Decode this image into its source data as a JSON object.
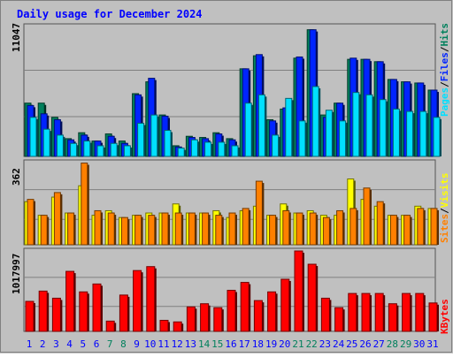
{
  "chart_data": [
    {
      "type": "bar",
      "title": "Daily usage for December 2024",
      "categories": [
        "1",
        "2",
        "3",
        "4",
        "5",
        "6",
        "7",
        "8",
        "9",
        "10",
        "11",
        "12",
        "13",
        "14",
        "15",
        "16",
        "17",
        "18",
        "19",
        "20",
        "21",
        "22",
        "23",
        "24",
        "25",
        "26",
        "27",
        "28",
        "29",
        "30",
        "31"
      ],
      "weekend_days": [
        "7",
        "8",
        "14",
        "15",
        "21",
        "22",
        "28",
        "29"
      ],
      "ylabels": {
        "hits": "Hits",
        "files": "Files",
        "pages": "Pages",
        "separator": "/"
      },
      "y_max_label": "11047",
      "ylim": [
        0,
        11047
      ],
      "series": [
        {
          "name": "Hits",
          "color": "#00805c",
          "values": [
            4500,
            4500,
            3300,
            1500,
            2000,
            1300,
            1900,
            1300,
            5300,
            6300,
            3500,
            900,
            1700,
            1600,
            2000,
            1500,
            7400,
            8500,
            3100,
            4000,
            8300,
            10700,
            3500,
            4500,
            8200,
            8200,
            8000,
            6500,
            6300,
            6200,
            5600
          ]
        },
        {
          "name": "Files",
          "color": "#0024ff",
          "values": [
            4300,
            3600,
            3100,
            1400,
            1800,
            1300,
            1700,
            1100,
            5200,
            6600,
            3400,
            800,
            1600,
            1500,
            1900,
            1400,
            7400,
            8600,
            3000,
            4100,
            8400,
            10700,
            3300,
            4500,
            8300,
            8200,
            8000,
            6500,
            6300,
            6200,
            5600
          ]
        },
        {
          "name": "Pages",
          "color": "#00e0ff",
          "values": [
            3300,
            2300,
            1800,
            1100,
            1300,
            900,
            1100,
            900,
            2800,
            3500,
            2200,
            700,
            1400,
            1200,
            1200,
            900,
            4500,
            5200,
            1800,
            4900,
            3000,
            5900,
            3900,
            3000,
            5400,
            5200,
            4800,
            4000,
            3800,
            3800,
            3300
          ]
        }
      ]
    },
    {
      "type": "bar",
      "ylabels": {
        "visits": "Visits",
        "sites": "Sites",
        "separator": "/"
      },
      "y_max_label": "362",
      "ylim": [
        0,
        362
      ],
      "series": [
        {
          "name": "Visits",
          "color": "#ffff00",
          "values": [
            190,
            130,
            210,
            140,
            260,
            130,
            150,
            120,
            130,
            140,
            140,
            180,
            140,
            140,
            150,
            120,
            150,
            170,
            130,
            180,
            140,
            150,
            130,
            130,
            290,
            200,
            170,
            130,
            130,
            170,
            160
          ]
        },
        {
          "name": "Sites",
          "color": "#ff8000",
          "values": [
            200,
            130,
            230,
            140,
            360,
            150,
            140,
            120,
            130,
            130,
            140,
            140,
            140,
            140,
            130,
            140,
            160,
            280,
            130,
            150,
            140,
            140,
            120,
            150,
            160,
            250,
            190,
            130,
            130,
            160,
            160
          ]
        }
      ]
    },
    {
      "type": "bar",
      "ylabels": {
        "kbytes": "KBytes"
      },
      "y_max_label": "1017997",
      "ylim": [
        0,
        1017997
      ],
      "series": [
        {
          "name": "KBytes",
          "color": "#ff0000",
          "values": [
            380000,
            510000,
            420000,
            760000,
            500000,
            600000,
            130000,
            460000,
            770000,
            820000,
            140000,
            120000,
            310000,
            350000,
            300000,
            520000,
            620000,
            390000,
            500000,
            660000,
            1017997,
            850000,
            420000,
            300000,
            480000,
            480000,
            480000,
            350000,
            480000,
            480000,
            360000
          ]
        }
      ]
    }
  ],
  "colors": {
    "background": "#c0c0c0",
    "title": "#0000ff",
    "weekday_label": "#0000ff",
    "weekend_label": "#00805c",
    "grid": "#808080"
  }
}
